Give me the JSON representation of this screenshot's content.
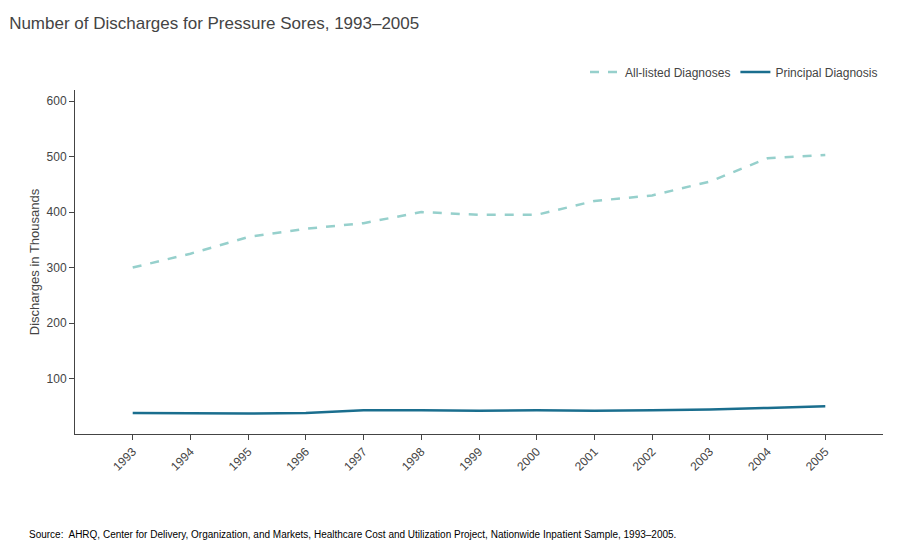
{
  "chart_data": {
    "type": "line",
    "title": "Number of Discharges for Pressure Sores, 1993–2005",
    "ylabel": "Discharges in Thousands",
    "annotation": "Source:  AHRQ, Center for Delivery, Organization, and Markets, Healthcare Cost and Utilization Project, Nationwide Inpatient Sample, 1993–2005.",
    "x": [
      1993,
      1994,
      1995,
      1996,
      1997,
      1998,
      1999,
      2000,
      2001,
      2002,
      2003,
      2004,
      2005
    ],
    "series": [
      {
        "name": "All-listed Diagnoses",
        "color": "#96d0cc",
        "line_style": "dashed",
        "values": [
          300,
          325,
          355,
          370,
          380,
          400,
          395,
          395,
          420,
          430,
          455,
          497,
          503
        ]
      },
      {
        "name": "Principal Diagnosis",
        "color": "#1a6e8e",
        "line_style": "solid",
        "values": [
          38,
          37,
          37,
          38,
          43,
          43,
          42,
          43,
          42,
          43,
          44,
          47,
          50
        ]
      }
    ],
    "xlim": [
      1992,
      2006
    ],
    "xticks": [
      1993,
      1994,
      1995,
      1996,
      1997,
      1998,
      1999,
      2000,
      2001,
      2002,
      2003,
      2004,
      2005
    ],
    "ylim": [
      0,
      620
    ],
    "yticks": [
      100,
      200,
      300,
      400,
      500,
      600
    ],
    "grid": false,
    "legend": "upper right"
  }
}
